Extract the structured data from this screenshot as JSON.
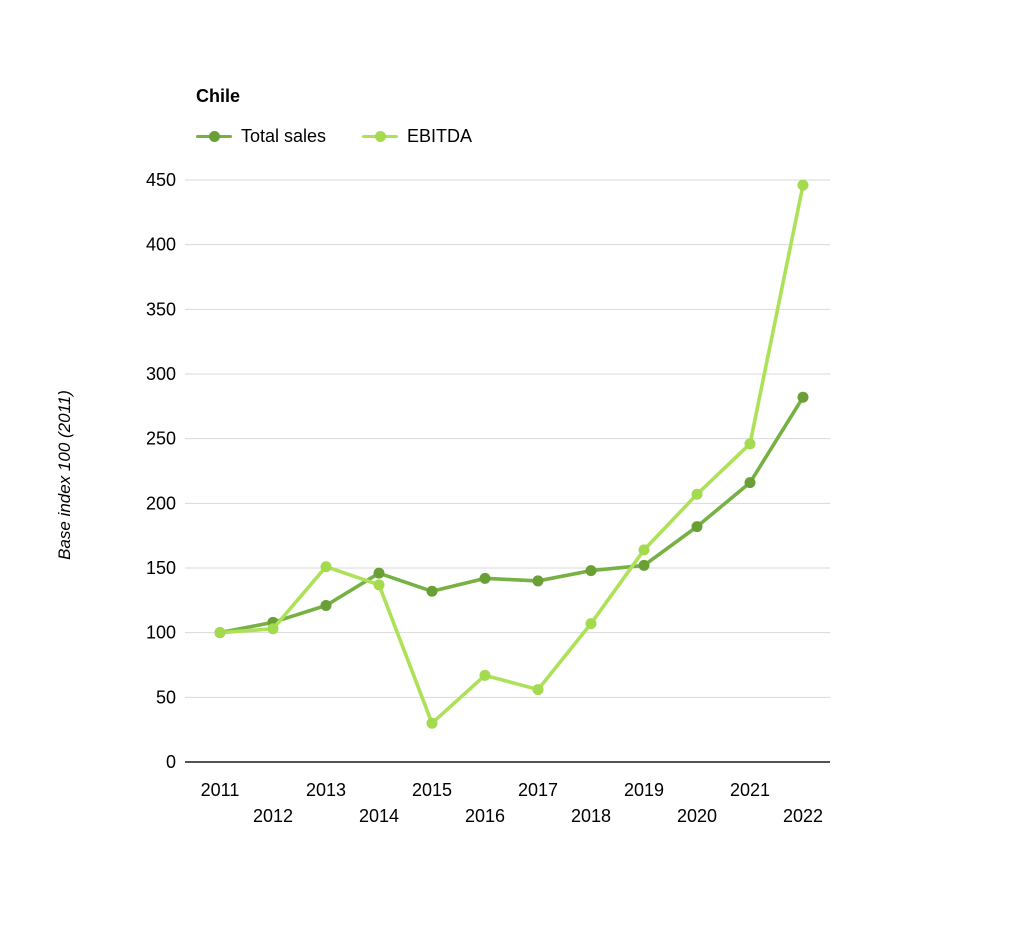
{
  "chart_data": {
    "type": "line",
    "title": "Chile",
    "ylabel": "Base index 100 (2011)",
    "x": [
      "2011",
      "2012",
      "2013",
      "2014",
      "2015",
      "2016",
      "2017",
      "2018",
      "2019",
      "2020",
      "2021",
      "2022"
    ],
    "series": [
      {
        "name": "Total sales",
        "color": "#77B043",
        "marker_color": "#699F35",
        "values": [
          100,
          108,
          121,
          146,
          132,
          142,
          140,
          148,
          152,
          182,
          216,
          282
        ]
      },
      {
        "name": "EBITDA",
        "color": "#ACE158",
        "marker_color": "#A3DA4E",
        "values": [
          100,
          103,
          151,
          137,
          30,
          67,
          56,
          107,
          164,
          207,
          246,
          446
        ]
      }
    ],
    "ylim": [
      0,
      450
    ],
    "yticks": [
      0,
      50,
      100,
      150,
      200,
      250,
      300,
      350,
      400,
      450
    ],
    "grid": true,
    "legend_position": "top-left",
    "x_label_layout": "staggered-two-rows",
    "colors": {
      "grid": "#d9d9d9",
      "axis": "#1a1a1a",
      "text": "#000000",
      "background": "#ffffff"
    }
  }
}
